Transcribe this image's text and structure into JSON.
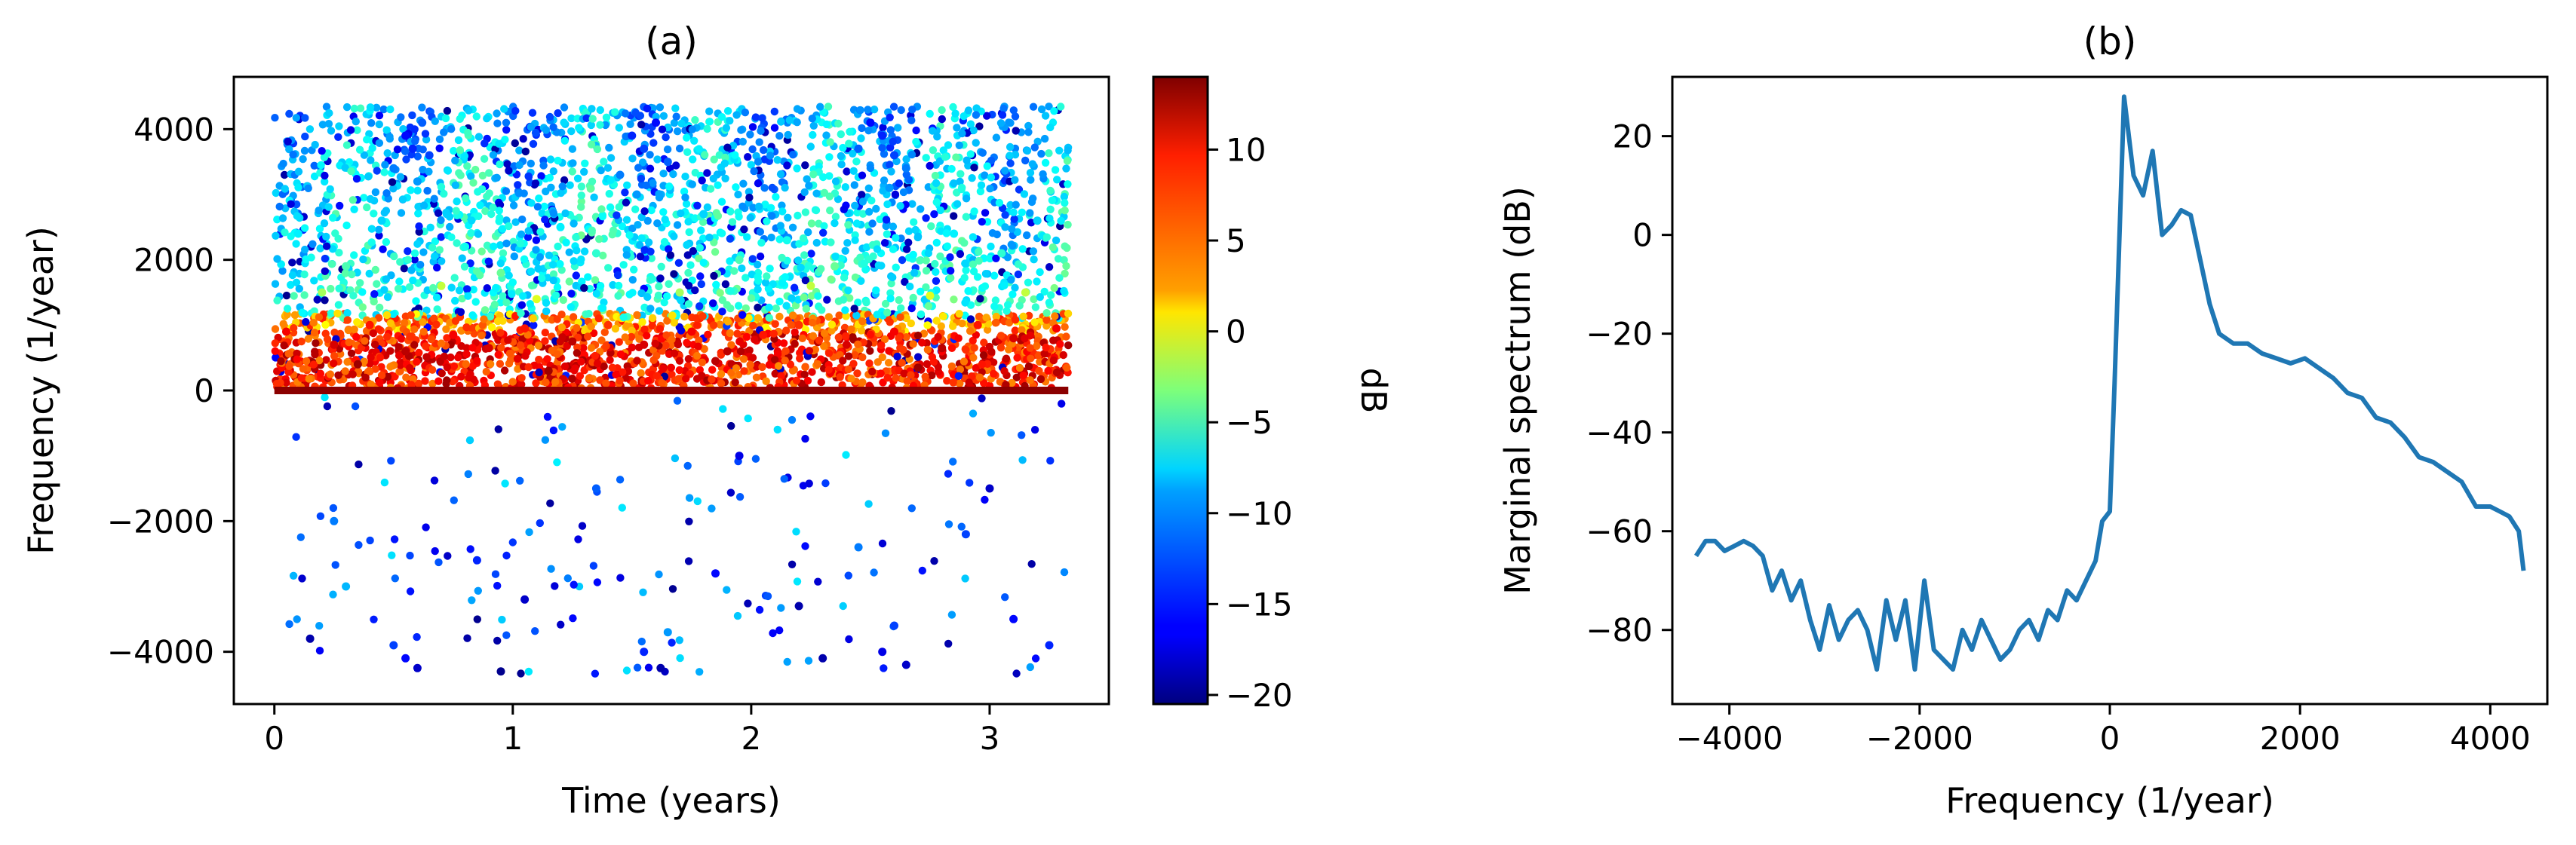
{
  "chart_data": [
    {
      "type": "scatter",
      "panel_title": "(a)",
      "xlabel": "Time (years)",
      "ylabel": "Frequency (1/year)",
      "xlim": [
        -0.17,
        3.5
      ],
      "ylim": [
        -4800,
        4800
      ],
      "xticks": [
        0,
        1,
        2,
        3
      ],
      "xtick_labels": [
        "0",
        "1",
        "2",
        "3"
      ],
      "yticks": [
        -4000,
        -2000,
        0,
        2000,
        4000
      ],
      "ytick_labels": [
        "−4000",
        "−2000",
        "0",
        "2000",
        "4000"
      ],
      "grid": false,
      "colorbar": {
        "label": "dB",
        "colormap": "jet",
        "range": [
          -20.5,
          14
        ],
        "ticks": [
          -20,
          -15,
          -10,
          -5,
          0,
          5,
          10
        ],
        "tick_labels": [
          "−20",
          "−15",
          "−10",
          "−5",
          "0",
          "5",
          "10"
        ]
      },
      "points": [
        [
          0.55,
          3900,
          -16
        ],
        [
          0.58,
          3700,
          -15
        ],
        [
          0.62,
          4100,
          -13
        ],
        [
          0.5,
          3400,
          -12
        ],
        [
          0.65,
          3600,
          -14
        ],
        [
          0.6,
          3200,
          -11
        ],
        [
          1.5,
          3900,
          -15
        ],
        [
          1.55,
          3700,
          -14
        ],
        [
          1.6,
          4100,
          -16
        ],
        [
          1.45,
          3300,
          -12
        ],
        [
          1.65,
          3500,
          -13
        ],
        [
          1.52,
          3000,
          -11
        ],
        [
          2.55,
          3900,
          -15
        ],
        [
          2.6,
          3600,
          -14
        ],
        [
          2.5,
          4100,
          -16
        ],
        [
          2.65,
          3400,
          -12
        ],
        [
          2.58,
          3100,
          -11
        ],
        [
          2.45,
          3700,
          -13
        ],
        [
          0.1,
          2400,
          -8
        ],
        [
          0.3,
          1900,
          -5
        ],
        [
          0.45,
          2600,
          -9
        ],
        [
          0.8,
          2200,
          -7
        ],
        [
          0.95,
          1800,
          -4
        ],
        [
          1.2,
          2500,
          -8
        ],
        [
          1.35,
          2100,
          -6
        ],
        [
          1.8,
          2700,
          -9
        ],
        [
          1.95,
          2000,
          -5
        ],
        [
          2.15,
          2300,
          -7
        ],
        [
          2.35,
          1900,
          -4
        ],
        [
          2.85,
          2400,
          -8
        ],
        [
          3.05,
          2100,
          -6
        ],
        [
          3.2,
          2600,
          -9
        ],
        [
          0.2,
          1500,
          -2
        ],
        [
          0.7,
          1600,
          -1
        ],
        [
          1.1,
          1400,
          0
        ],
        [
          1.7,
          1500,
          -2
        ],
        [
          2.25,
          1600,
          -1
        ],
        [
          2.75,
          1450,
          0
        ],
        [
          3.15,
          1500,
          -1
        ],
        [
          0.05,
          900,
          10
        ],
        [
          0.25,
          700,
          11
        ],
        [
          0.4,
          1000,
          9
        ],
        [
          0.55,
          600,
          12
        ],
        [
          0.75,
          850,
          10
        ],
        [
          0.9,
          650,
          11
        ],
        [
          1.05,
          950,
          9
        ],
        [
          1.25,
          750,
          12
        ],
        [
          1.4,
          1000,
          8
        ],
        [
          1.55,
          700,
          11
        ],
        [
          1.75,
          900,
          10
        ],
        [
          1.9,
          600,
          12
        ],
        [
          2.05,
          850,
          9
        ],
        [
          2.2,
          1000,
          8
        ],
        [
          2.4,
          700,
          11
        ],
        [
          2.6,
          900,
          10
        ],
        [
          2.8,
          650,
          12
        ],
        [
          2.95,
          1000,
          9
        ],
        [
          3.1,
          800,
          11
        ],
        [
          3.28,
          950,
          10
        ],
        [
          0.35,
          400,
          13
        ],
        [
          1.15,
          300,
          13
        ],
        [
          1.85,
          450,
          12
        ],
        [
          2.7,
          350,
          13
        ],
        [
          0.5,
          -3900,
          -14
        ],
        [
          0.55,
          -4100,
          -16
        ],
        [
          0.6,
          -4250,
          -18
        ],
        [
          1.55,
          -4000,
          -15
        ],
        [
          1.62,
          -4250,
          -19
        ],
        [
          2.6,
          -3600,
          -14
        ],
        [
          2.55,
          -4000,
          -17
        ],
        [
          2.65,
          -4200,
          -18
        ],
        [
          0.25,
          -2000,
          -12
        ],
        [
          0.85,
          -2600,
          -15
        ],
        [
          1.05,
          -3200,
          -18
        ],
        [
          1.85,
          -2800,
          -16
        ],
        [
          2.2,
          -3300,
          -19
        ],
        [
          2.9,
          -2200,
          -14
        ],
        [
          3.0,
          -1500,
          -18
        ],
        [
          0.3,
          -3000,
          -10
        ],
        [
          1.35,
          -1500,
          -13
        ],
        [
          1.95,
          -1000,
          -17
        ],
        [
          2.45,
          -2400,
          -12
        ],
        [
          3.25,
          -3900,
          -15
        ],
        [
          0.15,
          -3800,
          -19
        ],
        [
          0.95,
          -4300,
          -20
        ],
        [
          1.65,
          -3700,
          -11
        ],
        [
          2.3,
          -4100,
          -19
        ],
        [
          3.1,
          -3500,
          -16
        ]
      ]
    },
    {
      "type": "line",
      "panel_title": "(b)",
      "xlabel": "Frequency (1/year)",
      "ylabel": "Marginal spectrum (dB)",
      "xlim": [
        -4600,
        4600
      ],
      "ylim": [
        -95,
        32
      ],
      "xticks": [
        -4000,
        -2000,
        0,
        2000,
        4000
      ],
      "xtick_labels": [
        "−4000",
        "−2000",
        "0",
        "2000",
        "4000"
      ],
      "yticks": [
        -80,
        -60,
        -40,
        -20,
        0,
        20
      ],
      "ytick_labels": [
        "−80",
        "−60",
        "−40",
        "−20",
        "0",
        "20"
      ],
      "grid": false,
      "color": "#1f77b4",
      "x": [
        -4350,
        -4250,
        -4150,
        -4050,
        -3950,
        -3850,
        -3750,
        -3650,
        -3550,
        -3450,
        -3350,
        -3250,
        -3150,
        -3050,
        -2950,
        -2850,
        -2750,
        -2650,
        -2550,
        -2450,
        -2350,
        -2250,
        -2150,
        -2050,
        -1950,
        -1850,
        -1750,
        -1650,
        -1550,
        -1450,
        -1350,
        -1250,
        -1150,
        -1050,
        -950,
        -850,
        -750,
        -650,
        -550,
        -450,
        -350,
        -250,
        -150,
        -80,
        0,
        50,
        150,
        250,
        350,
        450,
        550,
        650,
        750,
        850,
        950,
        1050,
        1150,
        1300,
        1450,
        1600,
        1750,
        1900,
        2050,
        2200,
        2350,
        2500,
        2650,
        2800,
        2950,
        3100,
        3250,
        3400,
        3550,
        3700,
        3850,
        4000,
        4100,
        4200,
        4300,
        4350
      ],
      "y": [
        -65,
        -62,
        -62,
        -64,
        -63,
        -62,
        -63,
        -65,
        -72,
        -68,
        -74,
        -70,
        -78,
        -84,
        -75,
        -82,
        -78,
        -76,
        -80,
        -88,
        -74,
        -82,
        -74,
        -88,
        -70,
        -84,
        -86,
        -88,
        -80,
        -84,
        -78,
        -82,
        -86,
        -84,
        -80,
        -78,
        -82,
        -76,
        -78,
        -72,
        -74,
        -70,
        -66,
        -58,
        -56,
        -30,
        28,
        12,
        8,
        17,
        0,
        2,
        5,
        4,
        -5,
        -14,
        -20,
        -22,
        -22,
        -24,
        -25,
        -26,
        -25,
        -27,
        -29,
        -32,
        -33,
        -37,
        -38,
        -41,
        -45,
        -46,
        -48,
        -50,
        -55,
        -55,
        -56,
        -57,
        -60,
        -68
      ]
    }
  ]
}
